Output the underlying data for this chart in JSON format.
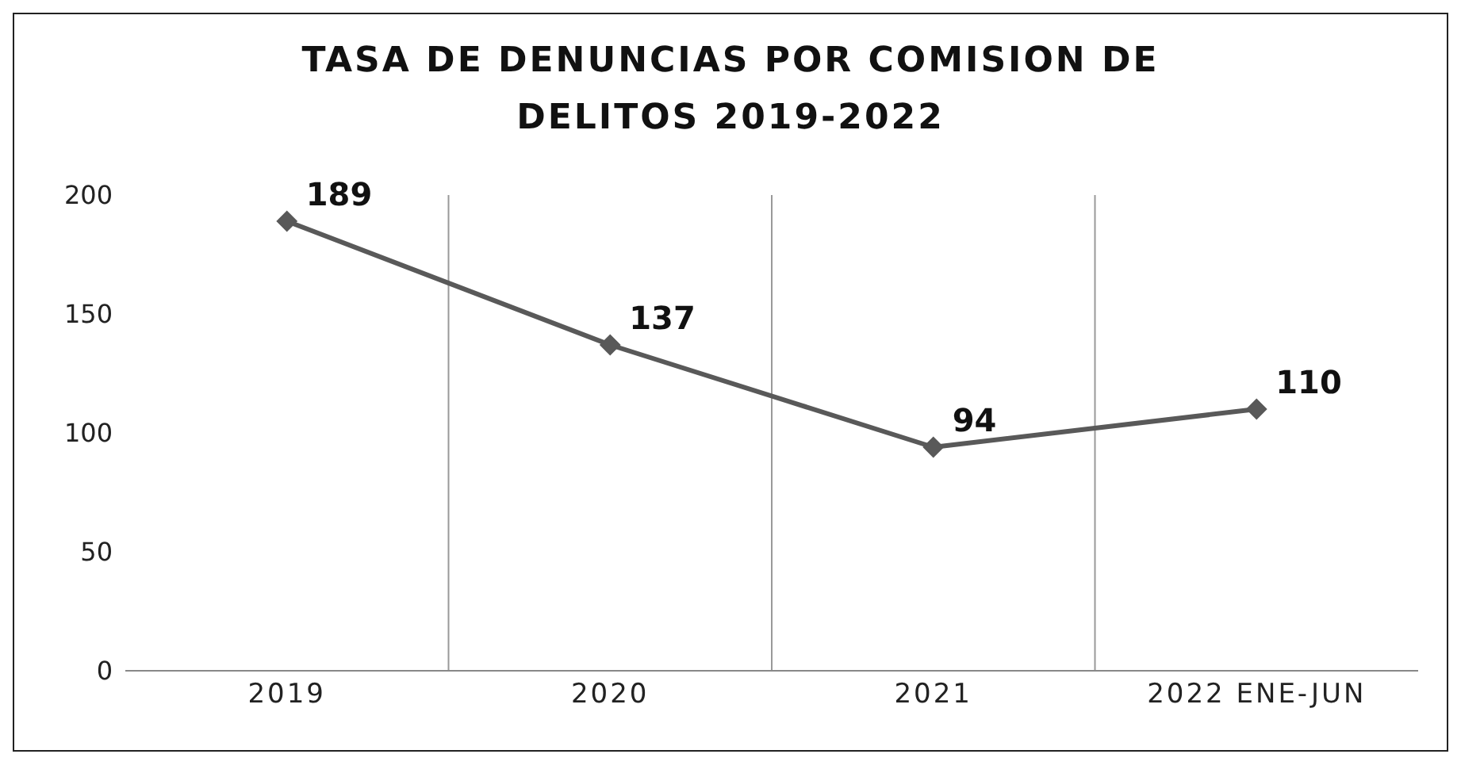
{
  "chart_data": {
    "type": "line",
    "title": "TASA DE DENUNCIAS POR COMISION DE DELITOS 2019-2022",
    "categories": [
      "2019",
      "2020",
      "2021",
      "2022 ENE-JUN"
    ],
    "series": [
      {
        "color": "#595959",
        "values": [
          189,
          137,
          94,
          110
        ]
      }
    ],
    "ylim": [
      0,
      200
    ],
    "yticks": [
      0,
      50,
      100,
      150,
      200
    ],
    "grid": "x",
    "legend": false,
    "marker": "diamond",
    "line_style": "solid",
    "data_labels": true
  }
}
